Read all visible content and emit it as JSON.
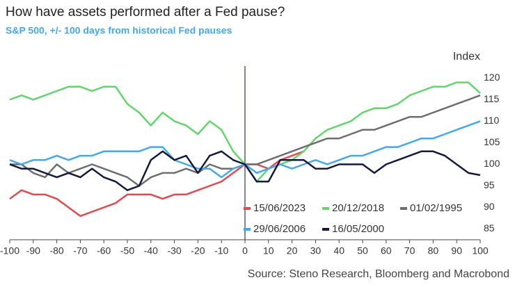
{
  "chart_data": {
    "type": "line",
    "title": "How have assets performed after a Fed pause?",
    "subtitle": "S&P 500, +/- 100 days from historical Fed pauses",
    "y_label": "Index",
    "source": "Source: Steno Research, Bloomberg and Macrobond",
    "x": [
      -100,
      -95,
      -90,
      -85,
      -80,
      -75,
      -70,
      -65,
      -60,
      -55,
      -50,
      -45,
      -40,
      -35,
      -30,
      -25,
      -20,
      -15,
      -10,
      -5,
      0,
      5,
      10,
      15,
      20,
      25,
      30,
      35,
      40,
      45,
      50,
      55,
      60,
      65,
      70,
      75,
      80,
      85,
      90,
      95,
      100
    ],
    "xlim": [
      -100,
      100
    ],
    "xticks": [
      -100,
      -90,
      -80,
      -70,
      -60,
      -50,
      -40,
      -30,
      -20,
      -10,
      0,
      10,
      20,
      30,
      40,
      50,
      60,
      70,
      80,
      90,
      100
    ],
    "ylim": [
      82.5,
      122
    ],
    "yticks": [
      85,
      90,
      95,
      100,
      105,
      110,
      115,
      120
    ],
    "series": [
      {
        "name": "15/06/2023",
        "color": "#e8474c",
        "values": [
          92,
          94,
          93,
          93,
          92,
          90,
          88,
          89,
          90,
          91,
          93,
          93,
          93,
          92,
          93,
          93,
          94,
          95,
          96,
          98,
          100,
          100,
          99,
          101,
          102,
          103,
          null,
          null,
          null,
          null,
          null,
          null,
          null,
          null,
          null,
          null,
          null,
          null,
          null,
          null,
          null
        ]
      },
      {
        "name": "20/12/2018",
        "color": "#5fd86a",
        "values": [
          115,
          116,
          115,
          116,
          117,
          118,
          118,
          117,
          118,
          118,
          114,
          112,
          109,
          112,
          110,
          109,
          107,
          110,
          108,
          103,
          100,
          96,
          99,
          100,
          101,
          103,
          106,
          108,
          109,
          110,
          112,
          113,
          113,
          114,
          116,
          117,
          118,
          118,
          119,
          119,
          116.5
        ]
      },
      {
        "name": "01/02/1995",
        "color": "#6e6e6e",
        "values": [
          100,
          100,
          98,
          97,
          100,
          98,
          99,
          100,
          99,
          98,
          97,
          95,
          97,
          98,
          98,
          99,
          98,
          100,
          99,
          99,
          100,
          100,
          101,
          102,
          103,
          104,
          105,
          106,
          106,
          107,
          108,
          108,
          109,
          110,
          111,
          111,
          112,
          113,
          114,
          115,
          116
        ]
      },
      {
        "name": "29/06/2006",
        "color": "#3fa9f5",
        "values": [
          101,
          100,
          101,
          101,
          102,
          101,
          102,
          102,
          103,
          103,
          103,
          103,
          104,
          104,
          101,
          100,
          99,
          99,
          97,
          99,
          100,
          98,
          99,
          100,
          99,
          100,
          101,
          100,
          101,
          102,
          102,
          103,
          104,
          104,
          105,
          106,
          106,
          107,
          108,
          109,
          110
        ]
      },
      {
        "name": "16/05/2000",
        "color": "#14193f",
        "values": [
          100,
          99,
          99,
          98,
          97,
          98,
          97,
          99,
          97,
          96,
          94,
          95,
          101,
          103,
          101,
          102,
          98,
          102,
          103,
          101,
          100,
          96,
          96,
          101,
          101,
          101,
          99,
          99,
          100,
          100,
          100,
          98,
          100,
          101,
          102,
          103,
          103,
          102,
          100,
          98,
          97.5
        ]
      }
    ]
  }
}
